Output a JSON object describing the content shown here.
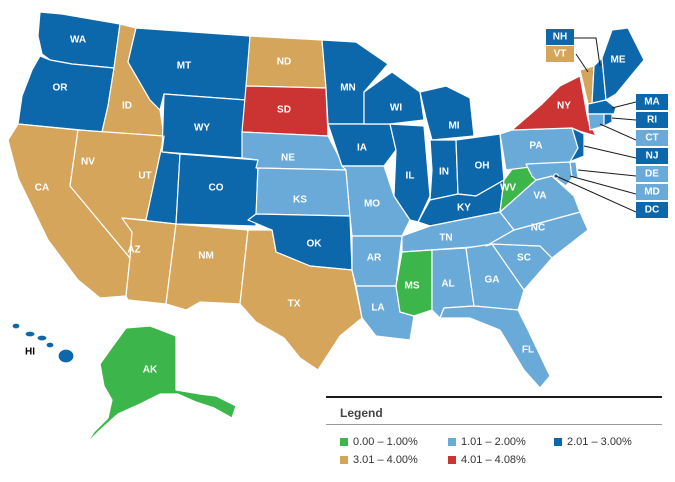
{
  "legend": {
    "title": "Legend",
    "items": [
      {
        "label": "0.00 – 1.00%",
        "color": "#3cb54a"
      },
      {
        "label": "1.01 – 2.00%",
        "color": "#6aaad8"
      },
      {
        "label": "2.01 – 3.00%",
        "color": "#0c68ab"
      },
      {
        "label": "3.01 – 4.00%",
        "color": "#d4a55a"
      },
      {
        "label": "4.01 – 4.08%",
        "color": "#cc3333"
      }
    ]
  },
  "states": {
    "WA": {
      "label": "WA",
      "color": "#0c68ab"
    },
    "OR": {
      "label": "OR",
      "color": "#0c68ab"
    },
    "CA": {
      "label": "CA",
      "color": "#d4a55a"
    },
    "ID": {
      "label": "ID",
      "color": "#d4a55a"
    },
    "NV": {
      "label": "NV",
      "color": "#d4a55a"
    },
    "MT": {
      "label": "MT",
      "color": "#0c68ab"
    },
    "WY": {
      "label": "WY",
      "color": "#0c68ab"
    },
    "UT": {
      "label": "UT",
      "color": "#0c68ab"
    },
    "AZ": {
      "label": "AZ",
      "color": "#d4a55a"
    },
    "CO": {
      "label": "CO",
      "color": "#0c68ab"
    },
    "NM": {
      "label": "NM",
      "color": "#d4a55a"
    },
    "ND": {
      "label": "ND",
      "color": "#d4a55a"
    },
    "SD": {
      "label": "SD",
      "color": "#cc3333"
    },
    "NE": {
      "label": "NE",
      "color": "#6aaad8"
    },
    "KS": {
      "label": "KS",
      "color": "#6aaad8"
    },
    "OK": {
      "label": "OK",
      "color": "#0c68ab"
    },
    "TX": {
      "label": "TX",
      "color": "#d4a55a"
    },
    "MN": {
      "label": "MN",
      "color": "#0c68ab"
    },
    "IA": {
      "label": "IA",
      "color": "#0c68ab"
    },
    "MO": {
      "label": "MO",
      "color": "#6aaad8"
    },
    "AR": {
      "label": "AR",
      "color": "#6aaad8"
    },
    "LA": {
      "label": "LA",
      "color": "#6aaad8"
    },
    "WI": {
      "label": "WI",
      "color": "#0c68ab"
    },
    "IL": {
      "label": "IL",
      "color": "#0c68ab"
    },
    "MI": {
      "label": "MI",
      "color": "#0c68ab"
    },
    "IN": {
      "label": "IN",
      "color": "#0c68ab"
    },
    "OH": {
      "label": "OH",
      "color": "#0c68ab"
    },
    "KY": {
      "label": "KY",
      "color": "#0c68ab"
    },
    "TN": {
      "label": "TN",
      "color": "#6aaad8"
    },
    "MS": {
      "label": "MS",
      "color": "#3cb54a"
    },
    "AL": {
      "label": "AL",
      "color": "#6aaad8"
    },
    "GA": {
      "label": "GA",
      "color": "#6aaad8"
    },
    "FL": {
      "label": "FL",
      "color": "#6aaad8"
    },
    "SC": {
      "label": "SC",
      "color": "#6aaad8"
    },
    "NC": {
      "label": "NC",
      "color": "#6aaad8"
    },
    "VA": {
      "label": "VA",
      "color": "#6aaad8"
    },
    "WV": {
      "label": "WV",
      "color": "#3cb54a"
    },
    "PA": {
      "label": "PA",
      "color": "#6aaad8"
    },
    "NY": {
      "label": "NY",
      "color": "#cc3333"
    },
    "ME": {
      "label": "ME",
      "color": "#0c68ab"
    },
    "NH": {
      "label": "NH",
      "color": "#0c68ab"
    },
    "VT": {
      "label": "VT",
      "color": "#d4a55a"
    },
    "MA": {
      "label": "MA",
      "color": "#0c68ab"
    },
    "RI": {
      "label": "RI",
      "color": "#0c68ab"
    },
    "CT": {
      "label": "CT",
      "color": "#6aaad8"
    },
    "NJ": {
      "label": "NJ",
      "color": "#0c68ab"
    },
    "DE": {
      "label": "DE",
      "color": "#6aaad8"
    },
    "MD": {
      "label": "MD",
      "color": "#6aaad8"
    },
    "DC": {
      "label": "DC",
      "color": "#0c68ab"
    },
    "AK": {
      "label": "AK",
      "color": "#3cb54a"
    },
    "HI": {
      "label": "HI",
      "color": "#0c68ab"
    }
  }
}
